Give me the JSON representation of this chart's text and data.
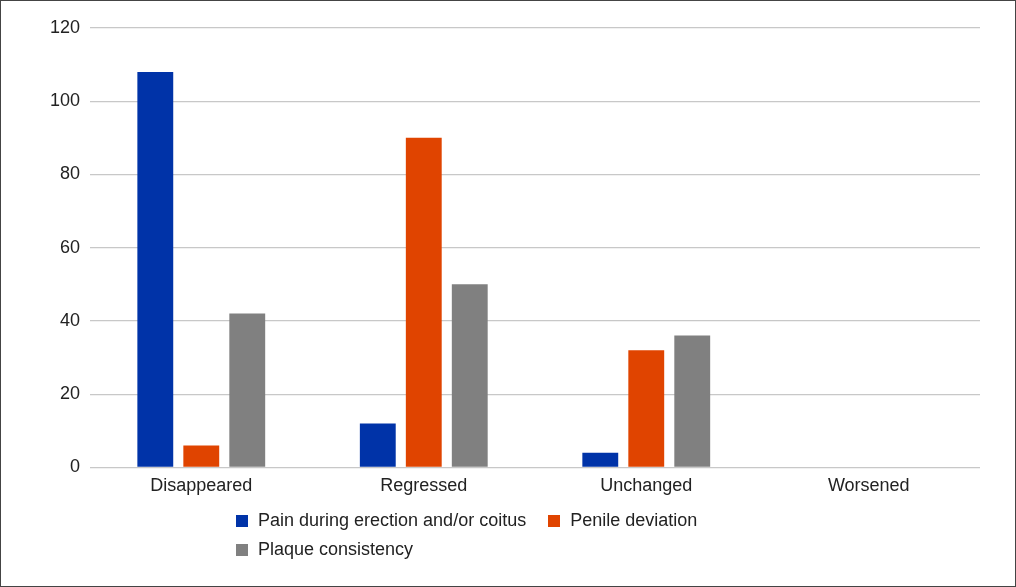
{
  "chart_data": {
    "type": "bar",
    "categories": [
      "Disappeared",
      "Regressed",
      "Unchanged",
      "Worsened"
    ],
    "series": [
      {
        "name": "Pain during erection and/or coitus",
        "color": "#0033a8",
        "values": [
          108,
          12,
          4,
          0
        ]
      },
      {
        "name": "Penile deviation",
        "color": "#e04400",
        "values": [
          6,
          90,
          32,
          0
        ]
      },
      {
        "name": "Plaque consistency",
        "color": "#808080",
        "values": [
          42,
          50,
          36,
          0
        ]
      }
    ],
    "ylim": [
      0,
      120
    ],
    "yticks": [
      0,
      20,
      40,
      60,
      80,
      100,
      120
    ],
    "grid": "y",
    "legend": "bottom"
  }
}
